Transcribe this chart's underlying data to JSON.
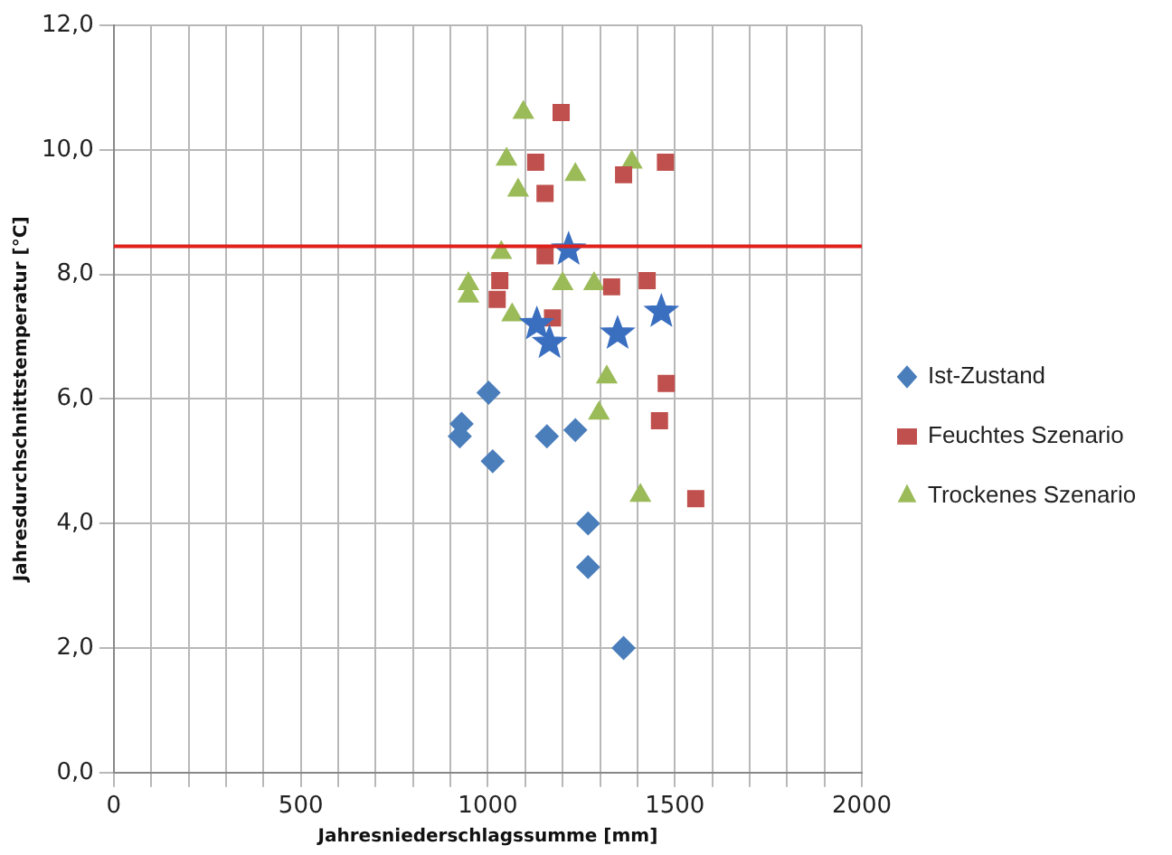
{
  "chart_data": {
    "type": "scatter",
    "xlabel": "Jahresniederschlagssumme [mm]",
    "ylabel": "Jahresdurchschnittstemperatur [°C]",
    "xlim": [
      0,
      2000
    ],
    "ylim": [
      0,
      12
    ],
    "xticks": [
      0,
      {
        "value": 100,
        "label": null
      },
      {
        "value": 200,
        "label": null
      },
      {
        "value": 300,
        "label": null
      },
      {
        "value": 400,
        "label": null
      },
      500,
      {
        "value": 600,
        "label": null
      },
      {
        "value": 700,
        "label": null
      },
      {
        "value": 800,
        "label": null
      },
      {
        "value": 900,
        "label": null
      },
      1000,
      {
        "value": 1100,
        "label": null
      },
      {
        "value": 1200,
        "label": null
      },
      {
        "value": 1300,
        "label": null
      },
      {
        "value": 1400,
        "label": null
      },
      1500,
      {
        "value": 1600,
        "label": null
      },
      {
        "value": 1700,
        "label": null
      },
      {
        "value": 1800,
        "label": null
      },
      {
        "value": 1900,
        "label": null
      },
      2000
    ],
    "yticks": [
      {
        "value": 0,
        "label": "0,0"
      },
      {
        "value": 2,
        "label": "2,0"
      },
      {
        "value": 4,
        "label": "4,0"
      },
      {
        "value": 6,
        "label": "6,0"
      },
      {
        "value": 8,
        "label": "8,0"
      },
      {
        "value": 10,
        "label": "10,0"
      },
      {
        "value": 12,
        "label": "12,0"
      }
    ],
    "grid": true,
    "legend": "right",
    "ref_lines": [
      {
        "axis": "y",
        "value": 8.45,
        "color": "#e0201b"
      }
    ],
    "series": [
      {
        "name": "Ist-Zustand",
        "color": "#4a7ebb",
        "marker": "diamond",
        "x": [
          930,
          925,
          1002,
          1013,
          1158,
          1234,
          1268,
          1268,
          1363
        ],
        "values": [
          5.6,
          5.4,
          6.1,
          5.0,
          5.4,
          5.5,
          4.0,
          3.3,
          2.0
        ]
      },
      {
        "name": "Feuchtes Szenario",
        "color": "#c0504d",
        "marker": "square",
        "x": [
          1196,
          1128,
          1153,
          1363,
          1475,
          1153,
          1032,
          1025,
          1173,
          1331,
          1426,
          1477,
          1459,
          1556
        ],
        "values": [
          10.6,
          9.8,
          9.3,
          9.6,
          9.8,
          8.3,
          7.9,
          7.6,
          7.3,
          7.8,
          7.9,
          6.25,
          5.65,
          4.4
        ]
      },
      {
        "name": "Trockenes Szenario",
        "color": "#9bbb59",
        "marker": "triangle",
        "x": [
          1095,
          1050,
          1081,
          1234,
          1385,
          1036,
          948,
          948,
          1065,
          1200,
          1284,
          1318,
          1297,
          1408
        ],
        "values": [
          10.6,
          9.85,
          9.35,
          9.6,
          9.8,
          8.35,
          7.85,
          7.65,
          7.35,
          7.85,
          7.85,
          6.35,
          5.77,
          4.45
        ]
      },
      {
        "color": "#3a6fc0",
        "marker": "star",
        "x": [
          1131,
          1165,
          1216,
          1347,
          1464
        ],
        "values": [
          7.2,
          6.9,
          8.4,
          7.05,
          7.4
        ]
      }
    ]
  }
}
